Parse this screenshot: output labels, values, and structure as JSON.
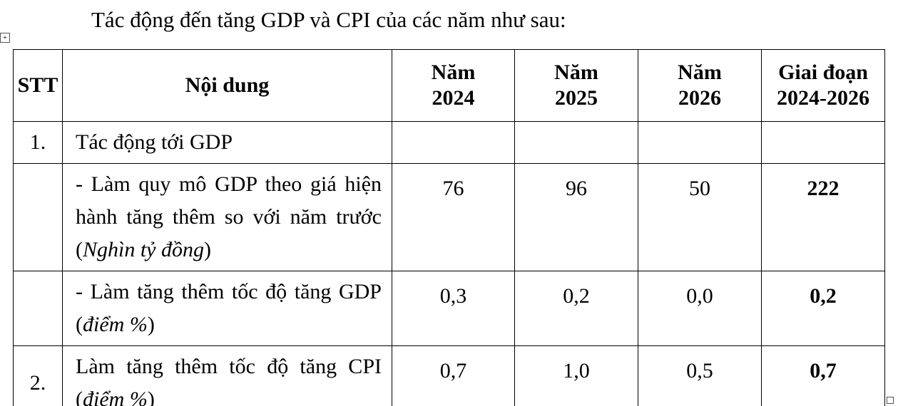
{
  "title": "Tác động đến tăng GDP và CPI của các năm như sau:",
  "table": {
    "header": [
      "STT",
      "Nội dung",
      "Năm\n2024",
      "Năm\n2025",
      "Năm\n2026",
      "Giai đoạn\n2024-2026"
    ],
    "last_column_bold": true,
    "rows": [
      {
        "stt": "1.",
        "content": [
          {
            "text": "Tác động tới GDP"
          }
        ],
        "values": []
      },
      {
        "content": [
          {
            "text": "- Làm quy mô GDP theo giá hiện hành tăng thêm so với năm trước ("
          },
          {
            "text": "Nghìn tỷ đồng",
            "italic": true
          },
          {
            "text": ")"
          }
        ],
        "values": [
          "76",
          "96",
          "50",
          "222"
        ]
      },
      {
        "content": [
          {
            "text": "- Làm tăng thêm tốc độ tăng GDP ("
          },
          {
            "text": "điểm %",
            "italic": true
          },
          {
            "text": ")"
          }
        ],
        "values": [
          "0,3",
          "0,2",
          "0,0",
          "0,2"
        ]
      },
      {
        "stt": "2.",
        "content": [
          {
            "text": "Làm tăng thêm tốc độ tăng CPI ("
          },
          {
            "text": "điểm %",
            "italic": true
          },
          {
            "text": ")"
          }
        ],
        "values": [
          "0,7",
          "1,0",
          "0,5",
          "0,7"
        ]
      }
    ]
  }
}
